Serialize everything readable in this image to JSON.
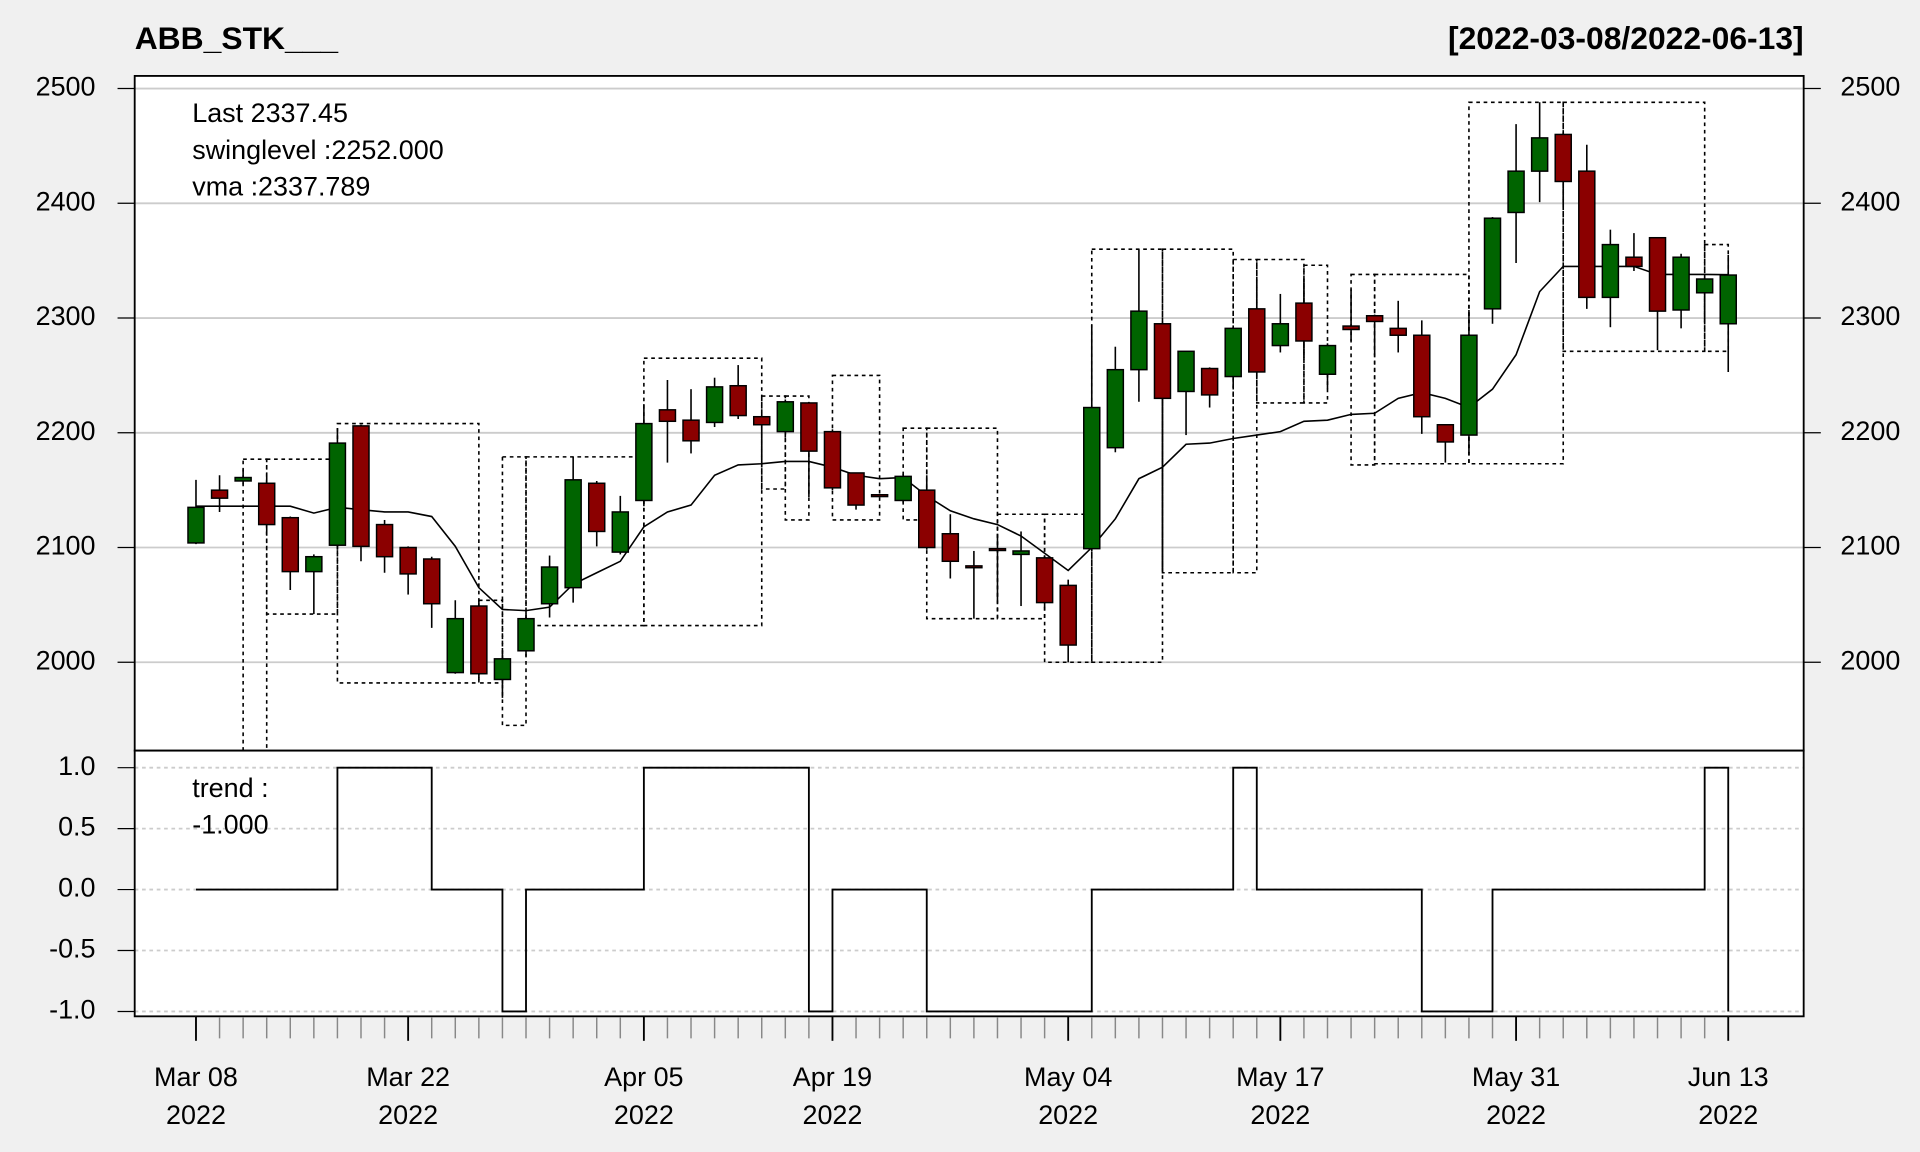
{
  "chart_data": {
    "type": "candlestick",
    "title": "ABB_STK___",
    "subtitle": "[2022-03-08/2022-06-13]",
    "legend_texts": [
      "Last 2337.45",
      "swinglevel :2252.000",
      "vma :2337.789"
    ],
    "legend_colors": [
      "#006400",
      "#000000",
      "#000000"
    ],
    "x": [
      "2022-03-08",
      "2022-03-09",
      "2022-03-10",
      "2022-03-11",
      "2022-03-14",
      "2022-03-15",
      "2022-03-16",
      "2022-03-17",
      "2022-03-21",
      "2022-03-22",
      "2022-03-23",
      "2022-03-24",
      "2022-03-25",
      "2022-03-28",
      "2022-03-29",
      "2022-03-30",
      "2022-03-31",
      "2022-04-01",
      "2022-04-04",
      "2022-04-05",
      "2022-04-06",
      "2022-04-07",
      "2022-04-08",
      "2022-04-11",
      "2022-04-12",
      "2022-04-13",
      "2022-04-18",
      "2022-04-19",
      "2022-04-20",
      "2022-04-21",
      "2022-04-22",
      "2022-04-25",
      "2022-04-26",
      "2022-04-27",
      "2022-04-28",
      "2022-04-29",
      "2022-05-02",
      "2022-05-04",
      "2022-05-05",
      "2022-05-06",
      "2022-05-09",
      "2022-05-10",
      "2022-05-11",
      "2022-05-12",
      "2022-05-13",
      "2022-05-16",
      "2022-05-17",
      "2022-05-18",
      "2022-05-19",
      "2022-05-20",
      "2022-05-23",
      "2022-05-24",
      "2022-05-25",
      "2022-05-26",
      "2022-05-27",
      "2022-05-30",
      "2022-05-31",
      "2022-06-01",
      "2022-06-02",
      "2022-06-03",
      "2022-06-06",
      "2022-06-07",
      "2022-06-08",
      "2022-06-09",
      "2022-06-10",
      "2022-06-13"
    ],
    "open": [
      2104,
      2150,
      2158,
      2156,
      2126,
      2079,
      2102,
      2206,
      2120,
      2100,
      2090,
      1991,
      2049,
      1985,
      2010,
      2051,
      2065,
      2156,
      2096,
      2141,
      2220,
      2211,
      2209,
      2241,
      2214,
      2201,
      2226,
      2201,
      2165,
      2146,
      2141,
      2150,
      2112,
      2084,
      2099,
      2094,
      2091,
      2067,
      2099,
      2187,
      2255,
      2295,
      2236,
      2256,
      2249,
      2308,
      2276,
      2313,
      2251,
      2293,
      2302,
      2291,
      2285,
      2207,
      2198,
      2308,
      2392,
      2428,
      2460,
      2428,
      2318,
      2353,
      2370,
      2307,
      2322,
      2295
    ],
    "high": [
      2159,
      2163,
      2168,
      2162,
      2127,
      2094,
      2204,
      2207,
      2124,
      2101,
      2092,
      2054,
      2054,
      2010,
      2043,
      2093,
      2179,
      2158,
      2145,
      2225,
      2246,
      2238,
      2248,
      2259,
      2215,
      2229,
      2226,
      2203,
      2165,
      2146,
      2164,
      2163,
      2129,
      2097,
      2112,
      2114,
      2093,
      2072,
      2294,
      2275,
      2360,
      2296,
      2271,
      2257,
      2292,
      2334,
      2321,
      2334,
      2278,
      2325,
      2303,
      2315,
      2298,
      2207,
      2307,
      2388,
      2469,
      2488,
      2462,
      2451,
      2377,
      2374,
      2370,
      2356,
      2335,
      2355
    ],
    "low": [
      2103,
      2131,
      2155,
      2111,
      2063,
      2042,
      2098,
      2088,
      2078,
      2059,
      2030,
      1990,
      1986,
      1969,
      2005,
      2039,
      2052,
      2101,
      2094,
      2136,
      2174,
      2182,
      2205,
      2212,
      2170,
      2196,
      2144,
      2150,
      2133,
      2144,
      2139,
      2098,
      2073,
      2038,
      2054,
      2049,
      2048,
      2000,
      2097,
      2183,
      2227,
      2079,
      2198,
      2222,
      2239,
      2248,
      2270,
      2265,
      2238,
      2280,
      2268,
      2270,
      2199,
      2174,
      2182,
      2295,
      2348,
      2401,
      2398,
      2308,
      2292,
      2341,
      2272,
      2291,
      2296,
      2253
    ],
    "close": [
      2135,
      2143,
      2161,
      2120,
      2079,
      2092,
      2191,
      2101,
      2092,
      2077,
      2051,
      2038,
      1990,
      2003,
      2038,
      2083,
      2159,
      2114,
      2131,
      2208,
      2210,
      2193,
      2240,
      2215,
      2207,
      2227,
      2184,
      2152,
      2137,
      2145,
      2162,
      2100,
      2088,
      2083,
      2098,
      2097,
      2052,
      2015,
      2222,
      2255,
      2306,
      2230,
      2271,
      2233,
      2291,
      2253,
      2295,
      2280,
      2276,
      2290,
      2297,
      2285,
      2214,
      2192,
      2285,
      2387,
      2428,
      2457,
      2419,
      2318,
      2364,
      2345,
      2306,
      2353,
      2334,
      2337.45
    ],
    "up_color": "#006400",
    "down_color": "#8b0000",
    "ylim": [
      1923,
      2511
    ],
    "yticks": [
      2000,
      2100,
      2200,
      2300,
      2400,
      2500
    ],
    "grid": true,
    "vma": {
      "color": "#000000",
      "values": [
        2136,
        2136,
        2136,
        2136,
        2136,
        2130,
        2135,
        2133,
        2131,
        2131,
        2127,
        2101,
        2065,
        2046,
        2045,
        2048,
        2068,
        2078,
        2088,
        2118,
        2131,
        2137,
        2163,
        2172,
        2173,
        2175,
        2175,
        2170,
        2163,
        2160,
        2161,
        2145,
        2132,
        2125,
        2120,
        2110,
        2095,
        2080,
        2100,
        2125,
        2160,
        2170,
        2190,
        2191,
        2195,
        2198,
        2201,
        2210,
        2211,
        2216,
        2217,
        2230,
        2235,
        2230,
        2222,
        2238,
        2268,
        2323,
        2345,
        2345,
        2345,
        2345,
        2338,
        2338,
        2338,
        2337.789
      ]
    },
    "swing_boxes": [
      {
        "from": "2022-03-10",
        "to": "2022-03-11",
        "high": 2177,
        "low": 1920
      },
      {
        "from": "2022-03-11",
        "to": "2022-03-16",
        "high": 2177,
        "low": 2042
      },
      {
        "from": "2022-03-16",
        "to": "2022-03-25",
        "high": 2208,
        "low": 1982
      },
      {
        "from": "2022-03-25",
        "to": "2022-03-28",
        "high": 2054,
        "low": 1982
      },
      {
        "from": "2022-03-28",
        "to": "2022-03-29",
        "high": 2179,
        "low": 1945
      },
      {
        "from": "2022-03-29",
        "to": "2022-04-05",
        "high": 2179,
        "low": 2032
      },
      {
        "from": "2022-04-05",
        "to": "2022-04-12",
        "high": 2265,
        "low": 2032
      },
      {
        "from": "2022-04-12",
        "to": "2022-04-13",
        "high": 2232,
        "low": 2151
      },
      {
        "from": "2022-04-13",
        "to": "2022-04-18",
        "high": 2232,
        "low": 2124
      },
      {
        "from": "2022-04-19",
        "to": "2022-04-21",
        "high": 2250,
        "low": 2124
      },
      {
        "from": "2022-04-22",
        "to": "2022-04-25",
        "high": 2204,
        "low": 2124
      },
      {
        "from": "2022-04-25",
        "to": "2022-04-28",
        "high": 2204,
        "low": 2038
      },
      {
        "from": "2022-04-28",
        "to": "2022-05-02",
        "high": 2129,
        "low": 2038
      },
      {
        "from": "2022-05-02",
        "to": "2022-05-05",
        "high": 2129,
        "low": 2000
      },
      {
        "from": "2022-05-05",
        "to": "2022-05-10",
        "high": 2360,
        "low": 2000
      },
      {
        "from": "2022-05-10",
        "to": "2022-05-13",
        "high": 2360,
        "low": 2078
      },
      {
        "from": "2022-05-13",
        "to": "2022-05-16",
        "high": 2351,
        "low": 2078
      },
      {
        "from": "2022-05-16",
        "to": "2022-05-18",
        "high": 2351,
        "low": 2226
      },
      {
        "from": "2022-05-18",
        "to": "2022-05-19",
        "high": 2346,
        "low": 2226
      },
      {
        "from": "2022-05-20",
        "to": "2022-05-23",
        "high": 2338,
        "low": 2172
      },
      {
        "from": "2022-05-23",
        "to": "2022-05-27",
        "high": 2338,
        "low": 2173
      },
      {
        "from": "2022-05-27",
        "to": "2022-06-02",
        "high": 2488,
        "low": 2173
      },
      {
        "from": "2022-06-02",
        "to": "2022-06-10",
        "high": 2488,
        "low": 2271
      },
      {
        "from": "2022-06-10",
        "to": "2022-06-13",
        "high": 2364,
        "low": 2271
      }
    ],
    "trend": {
      "type": "step",
      "labels": [
        "trend :",
        "-1.000"
      ],
      "color": "#000000",
      "values": [
        0,
        0,
        0,
        0,
        0,
        0,
        1,
        1,
        1,
        1,
        0,
        0,
        0,
        -1,
        0,
        0,
        0,
        0,
        0,
        1,
        1,
        1,
        1,
        1,
        1,
        1,
        -1,
        0,
        0,
        0,
        0,
        -1,
        -1,
        -1,
        -1,
        -1,
        -1,
        -1,
        0,
        0,
        0,
        0,
        0,
        0,
        1,
        0,
        0,
        0,
        0,
        0,
        0,
        0,
        -1,
        -1,
        -1,
        0,
        0,
        0,
        0,
        0,
        0,
        0,
        0,
        0,
        1,
        -1
      ],
      "ylim": [
        -1.04,
        1.14
      ],
      "yticks": [
        {
          "value": 1,
          "label": "1.0"
        },
        {
          "value": 0.5,
          "label": "0.5"
        },
        {
          "value": 0,
          "label": "0.0"
        },
        {
          "value": -0.5,
          "label": "-0.5"
        },
        {
          "value": -1,
          "label": "-1.0"
        }
      ],
      "grid": true
    },
    "xticks": [
      {
        "value": "2022-03-08",
        "label": "Mar 08\n2022"
      },
      {
        "value": "2022-03-22",
        "label": "Mar 22\n2022"
      },
      {
        "value": "2022-04-05",
        "label": "Apr 05\n2022"
      },
      {
        "value": "2022-04-19",
        "label": "Apr 19\n2022"
      },
      {
        "value": "2022-05-04",
        "label": "May 04\n2022"
      },
      {
        "value": "2022-05-17",
        "label": "May 17\n2022"
      },
      {
        "value": "2022-05-31",
        "label": "May 31\n2022"
      },
      {
        "value": "2022-06-13",
        "label": "Jun 13\n2022"
      }
    ]
  }
}
